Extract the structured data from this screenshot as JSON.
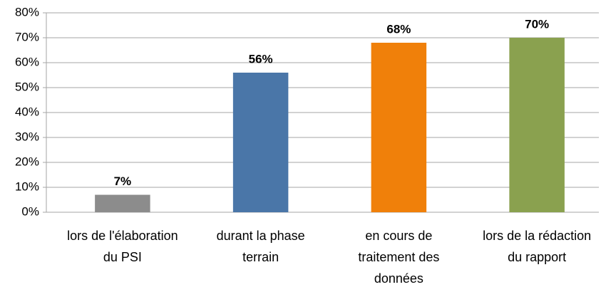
{
  "chart_data": {
    "type": "bar",
    "categories": [
      "lors de l'élaboration du PSI",
      "durant la phase terrain",
      "en cours de traitement des données",
      "lors de la rédaction du rapport"
    ],
    "values": [
      7,
      56,
      68,
      70
    ],
    "value_labels": [
      "7%",
      "56%",
      "68%",
      "70%"
    ],
    "colors": [
      "#8c8c8c",
      "#4a76a8",
      "#f0800a",
      "#8aa14f"
    ],
    "ylim": [
      0,
      80
    ],
    "yticks": [
      {
        "value": 0,
        "label": "0%"
      },
      {
        "value": 10,
        "label": "10%"
      },
      {
        "value": 20,
        "label": "20%"
      },
      {
        "value": 30,
        "label": "30%"
      },
      {
        "value": 40,
        "label": "40%"
      },
      {
        "value": 50,
        "label": "50%"
      },
      {
        "value": 60,
        "label": "60%"
      },
      {
        "value": 70,
        "label": "70%"
      },
      {
        "value": 80,
        "label": "80%"
      }
    ],
    "grid": true
  }
}
